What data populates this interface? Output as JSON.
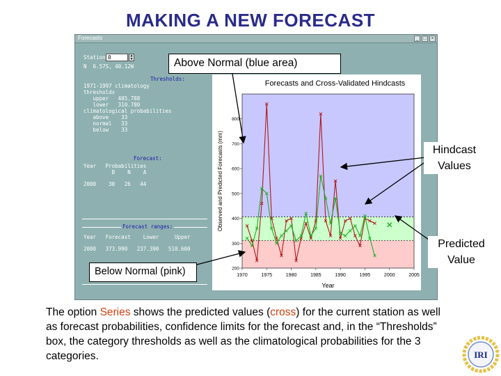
{
  "slide_title": "MAKING A NEW FORECAST",
  "window": {
    "title": "Forecasts",
    "left_panel": {
      "station_label": "Station",
      "station_value": "0",
      "coords": "N  6.57S, 40.12W",
      "thresholds_heading": "Thresholds:",
      "thresholds_lines": [
        "1971-1997 climatology",
        "thresholds",
        "   upper   405.788",
        "   lower   310.780",
        "climatological probabilities",
        "   above    33",
        "   normal   33",
        "   below    33"
      ],
      "forecast_heading": "Forecast:",
      "forecast_header": "Year   Probabilities",
      "forecast_subheader": "         B    N    A",
      "forecast_row": "2000    30   26   44",
      "ranges_heading": "Forecast ranges:",
      "ranges_header": "Year   Forecast    Lower     Upper",
      "ranges_row": "2000   373.990   237.390   510.600"
    }
  },
  "chart_data": {
    "type": "line",
    "title": "Forecasts and Cross-Validated Hindcasts",
    "xlabel": "Year",
    "ylabel": "Observed and Predicted Forecasts (mm)",
    "xlim": [
      1970,
      2005
    ],
    "ylim": [
      200,
      900
    ],
    "xticks": [
      1970,
      1975,
      1980,
      1985,
      1990,
      1995,
      2000,
      2005
    ],
    "yticks": [
      200,
      300,
      400,
      500,
      600,
      700,
      800
    ],
    "thresholds": {
      "upper": 405.788,
      "lower": 310.78
    },
    "band_colors": {
      "above": "#c8c8ff",
      "normal": "#ccffcc",
      "below": "#ffcccc"
    },
    "series": [
      {
        "color": "#b01818",
        "x": [
          1971,
          1972,
          1973,
          1974,
          1975,
          1976,
          1977,
          1978,
          1979,
          1980,
          1981,
          1982,
          1983,
          1984,
          1985,
          1986,
          1987,
          1988,
          1989,
          1990,
          1991,
          1992,
          1993,
          1994,
          1995,
          1996,
          1997
        ],
        "values": [
          370,
          310,
          230,
          460,
          860,
          400,
          320,
          250,
          390,
          400,
          230,
          320,
          380,
          320,
          390,
          820,
          390,
          330,
          550,
          320,
          390,
          400,
          330,
          290,
          400,
          390,
          380
        ]
      },
      {
        "color": "#22aa22",
        "x": [
          1971,
          1972,
          1973,
          1974,
          1975,
          1976,
          1977,
          1978,
          1979,
          1980,
          1981,
          1982,
          1983,
          1984,
          1985,
          1986,
          1987,
          1988,
          1989,
          1990,
          1991,
          1992,
          1993,
          1994,
          1995,
          1996,
          1997
        ],
        "values": [
          320,
          290,
          360,
          520,
          500,
          360,
          300,
          330,
          350,
          370,
          310,
          330,
          420,
          330,
          360,
          570,
          480,
          380,
          480,
          340,
          330,
          350,
          370,
          330,
          410,
          320,
          250
        ]
      }
    ],
    "forecast_point": {
      "x": 2000,
      "value": 374,
      "color": "#22aa22"
    }
  },
  "callouts": {
    "above_normal": "Above Normal (blue area)",
    "below_normal": "Below Normal (pink)",
    "hindcast_line1": "Hindcast",
    "hindcast_line2": "Values",
    "predicted_line1": "Predicted",
    "predicted_line2": "Value"
  },
  "description": {
    "part1": "The option ",
    "series_word": "Series",
    "part2": " shows the predicted values (",
    "cross_word": "cross",
    "part3": ") for the current station as well as forecast probabilities, confidence limits for the forecast and, in the “Thresholds” box, the category thresholds as well as the climatological probabilities for the 3 categories."
  },
  "logo": {
    "text": "IRI"
  }
}
